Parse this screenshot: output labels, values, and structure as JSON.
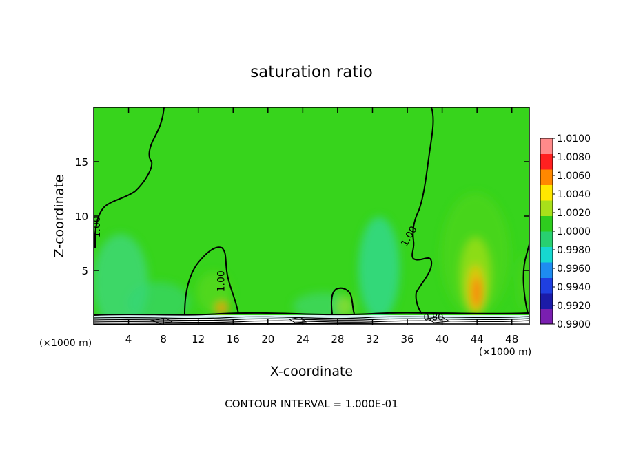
{
  "chart_data": {
    "type": "heatmap",
    "title": "saturation ratio",
    "xlabel": "X-coordinate",
    "ylabel": "Z-coordinate",
    "x_unit_left": "(×1000 m)",
    "x_unit_right": "(×1000 m)",
    "footnote": "CONTOUR INTERVAL = 1.000E-01",
    "xlim": [
      0,
      50
    ],
    "ylim": [
      0,
      20
    ],
    "x_ticks": [
      4,
      8,
      12,
      16,
      20,
      24,
      28,
      32,
      36,
      40,
      44,
      48
    ],
    "y_ticks": [
      5,
      10,
      15
    ],
    "colorbar": {
      "levels": [
        0.99,
        0.992,
        0.994,
        0.996,
        0.998,
        1.0,
        1.002,
        1.004,
        1.006,
        1.008,
        1.01
      ],
      "labels": [
        "0.9900",
        "0.9920",
        "0.9940",
        "0.9960",
        "0.9980",
        "1.0000",
        "1.0020",
        "1.0040",
        "1.0060",
        "1.0080",
        "1.0100"
      ],
      "colors": [
        "#7a1fb0",
        "#1b1ba8",
        "#1f3fe0",
        "#1e8cf0",
        "#16d8d0",
        "#28d070",
        "#2ecc1e",
        "#a8e01a",
        "#ffe800",
        "#ff8800",
        "#ff2020",
        "#ff8a8a"
      ]
    },
    "background_color": "#37d41c",
    "contour_labels": [
      {
        "text": "1.00",
        "x": 0.7,
        "z": 9.0
      },
      {
        "text": "1.00",
        "x": 15.0,
        "z": 4.0
      },
      {
        "text": "1.00",
        "x": 36.5,
        "z": 8.0
      },
      {
        "text": "0.80",
        "x": 39.0,
        "z": 0.4
      }
    ]
  }
}
